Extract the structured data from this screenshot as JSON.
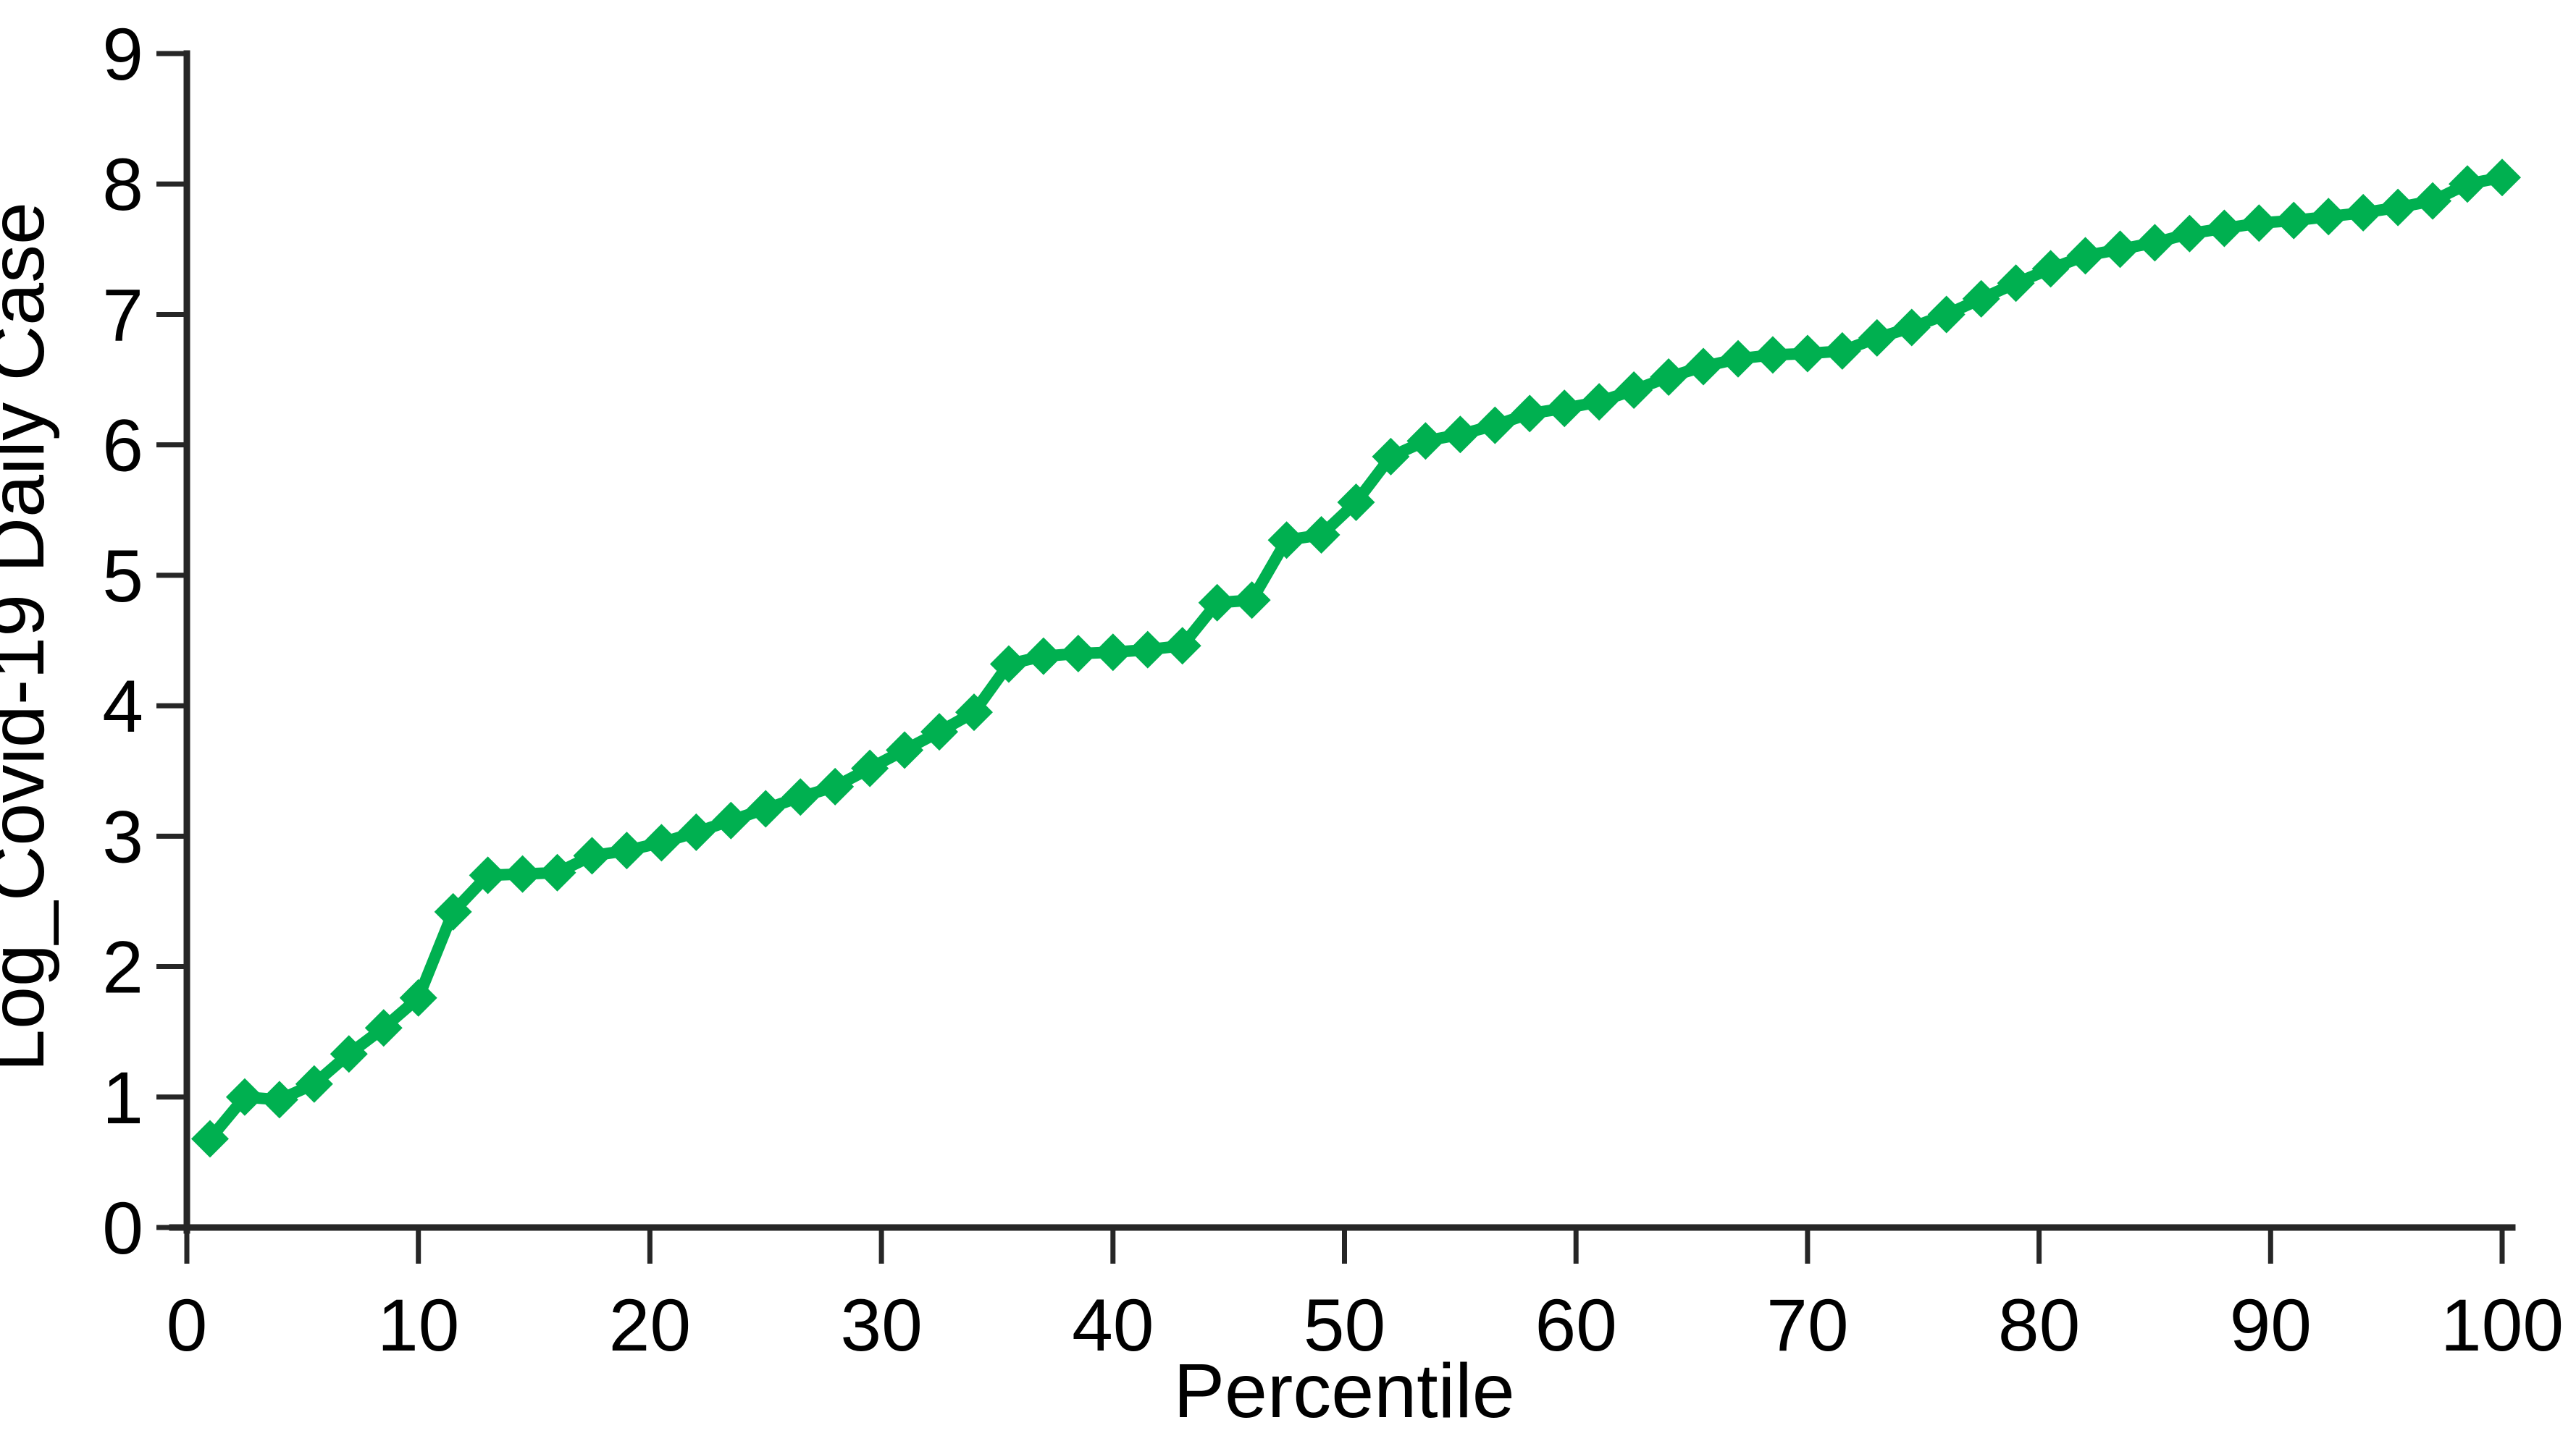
{
  "chart_data": {
    "type": "line",
    "title": "",
    "xlabel": "Percentile",
    "ylabel": "Log_Covid-19 Daily Case",
    "xlim": [
      0,
      100
    ],
    "ylim": [
      0,
      9
    ],
    "x_ticks": [
      0,
      10,
      20,
      30,
      40,
      50,
      60,
      70,
      80,
      90,
      100
    ],
    "y_ticks": [
      0,
      1,
      2,
      3,
      4,
      5,
      6,
      7,
      8,
      9
    ],
    "grid": false,
    "legend_position": "none",
    "series": [
      {
        "name": "Log_Covid-19 Daily Case",
        "color": "#00B050",
        "marker": "diamond",
        "line_width": 16,
        "x": [
          1,
          2.5,
          4,
          5.5,
          7,
          8.5,
          10,
          11.5,
          13,
          14.5,
          16,
          17.5,
          19,
          20.5,
          22,
          23.5,
          25,
          26.5,
          28,
          29.5,
          31,
          32.5,
          34,
          35.5,
          37,
          38.5,
          40,
          41.5,
          43,
          44.5,
          46,
          47.5,
          49,
          50.5,
          52,
          53.5,
          55,
          56.5,
          58,
          59.5,
          61,
          62.5,
          64,
          65.5,
          67,
          68.5,
          70,
          71.5,
          73,
          74.5,
          76,
          77.5,
          79,
          80.5,
          82,
          83.5,
          85,
          86.5,
          88,
          89.5,
          91,
          92.5,
          94,
          95.5,
          97,
          98.5,
          100
        ],
        "y": [
          0.68,
          1.0,
          0.98,
          1.1,
          1.33,
          1.53,
          1.76,
          2.42,
          2.7,
          2.71,
          2.72,
          2.85,
          2.89,
          2.95,
          3.03,
          3.12,
          3.21,
          3.3,
          3.38,
          3.52,
          3.66,
          3.8,
          3.95,
          4.32,
          4.38,
          4.4,
          4.41,
          4.43,
          4.46,
          4.79,
          4.81,
          5.27,
          5.31,
          5.56,
          5.91,
          6.03,
          6.08,
          6.15,
          6.24,
          6.28,
          6.33,
          6.42,
          6.52,
          6.6,
          6.66,
          6.69,
          6.7,
          6.72,
          6.82,
          6.9,
          7.0,
          7.12,
          7.24,
          7.35,
          7.45,
          7.5,
          7.55,
          7.62,
          7.66,
          7.7,
          7.72,
          7.75,
          7.78,
          7.82,
          7.87,
          8.0,
          8.05
        ]
      }
    ],
    "colors": {
      "series_green": "#00B050",
      "axis": "#262626",
      "text": "#000000",
      "background": "#ffffff"
    }
  }
}
